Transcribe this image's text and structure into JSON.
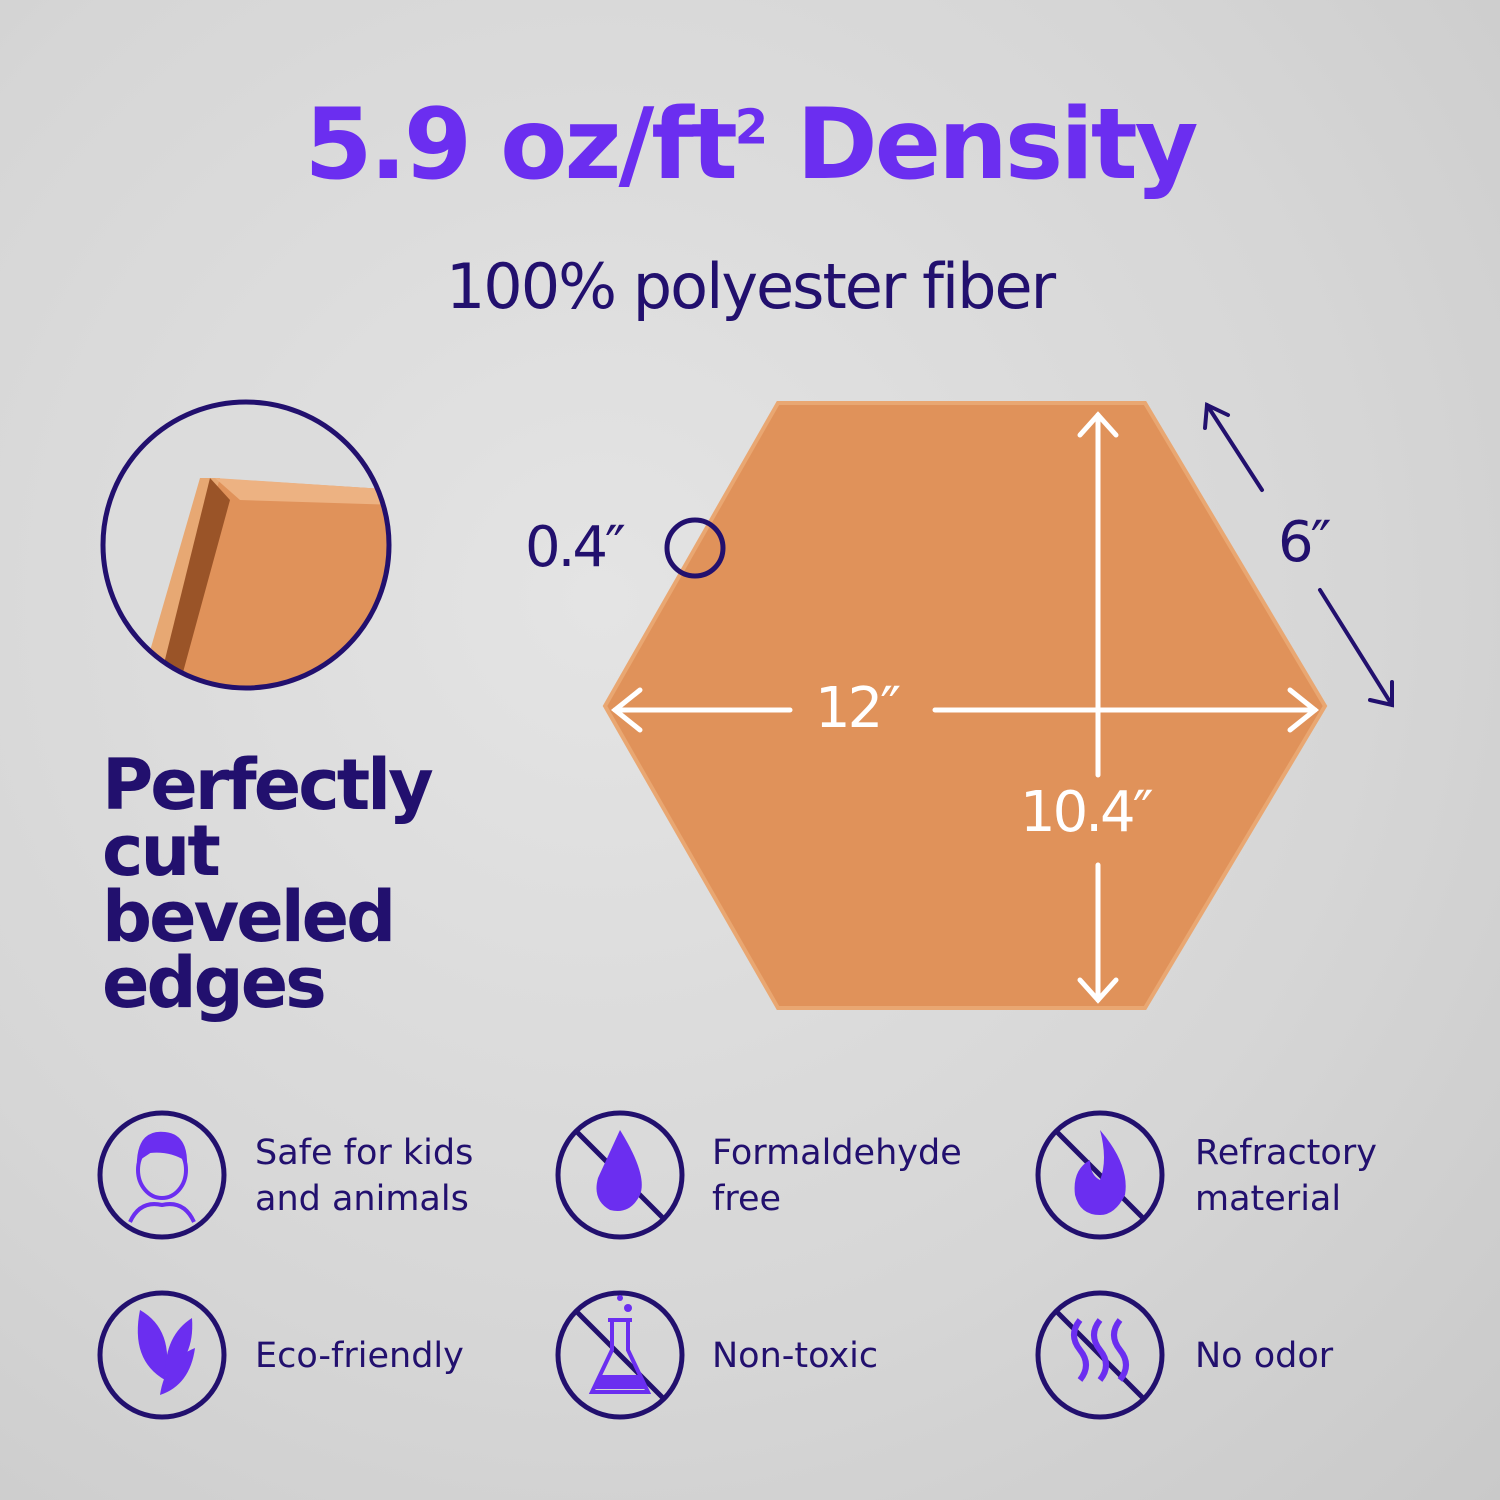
{
  "headline": {
    "value": "5.9 oz/ft",
    "superscript": "2",
    "suffix": " Density"
  },
  "subtitle": "100% polyester fiber",
  "edge_feature": {
    "label": "Perfectly cut beveled edges"
  },
  "dimensions": {
    "thickness": "0.4″",
    "width": "12″",
    "height": "10.4″",
    "side": "6″"
  },
  "features": [
    {
      "icon": "child-face-icon",
      "label": "Safe for kids\nand animals"
    },
    {
      "icon": "no-formaldehyde-drop-icon",
      "label": "Formaldehyde\nfree"
    },
    {
      "icon": "no-fire-icon",
      "label": "Refractory\nmaterial"
    },
    {
      "icon": "leaves-icon",
      "label": "Eco-friendly"
    },
    {
      "icon": "no-toxic-flask-icon",
      "label": "Non-toxic"
    },
    {
      "icon": "no-odor-icon",
      "label": "No odor"
    }
  ],
  "colors": {
    "accent": "#6b2ef0",
    "text": "#22106e",
    "panel": "#e0925a",
    "background": "#d8d8d8"
  }
}
